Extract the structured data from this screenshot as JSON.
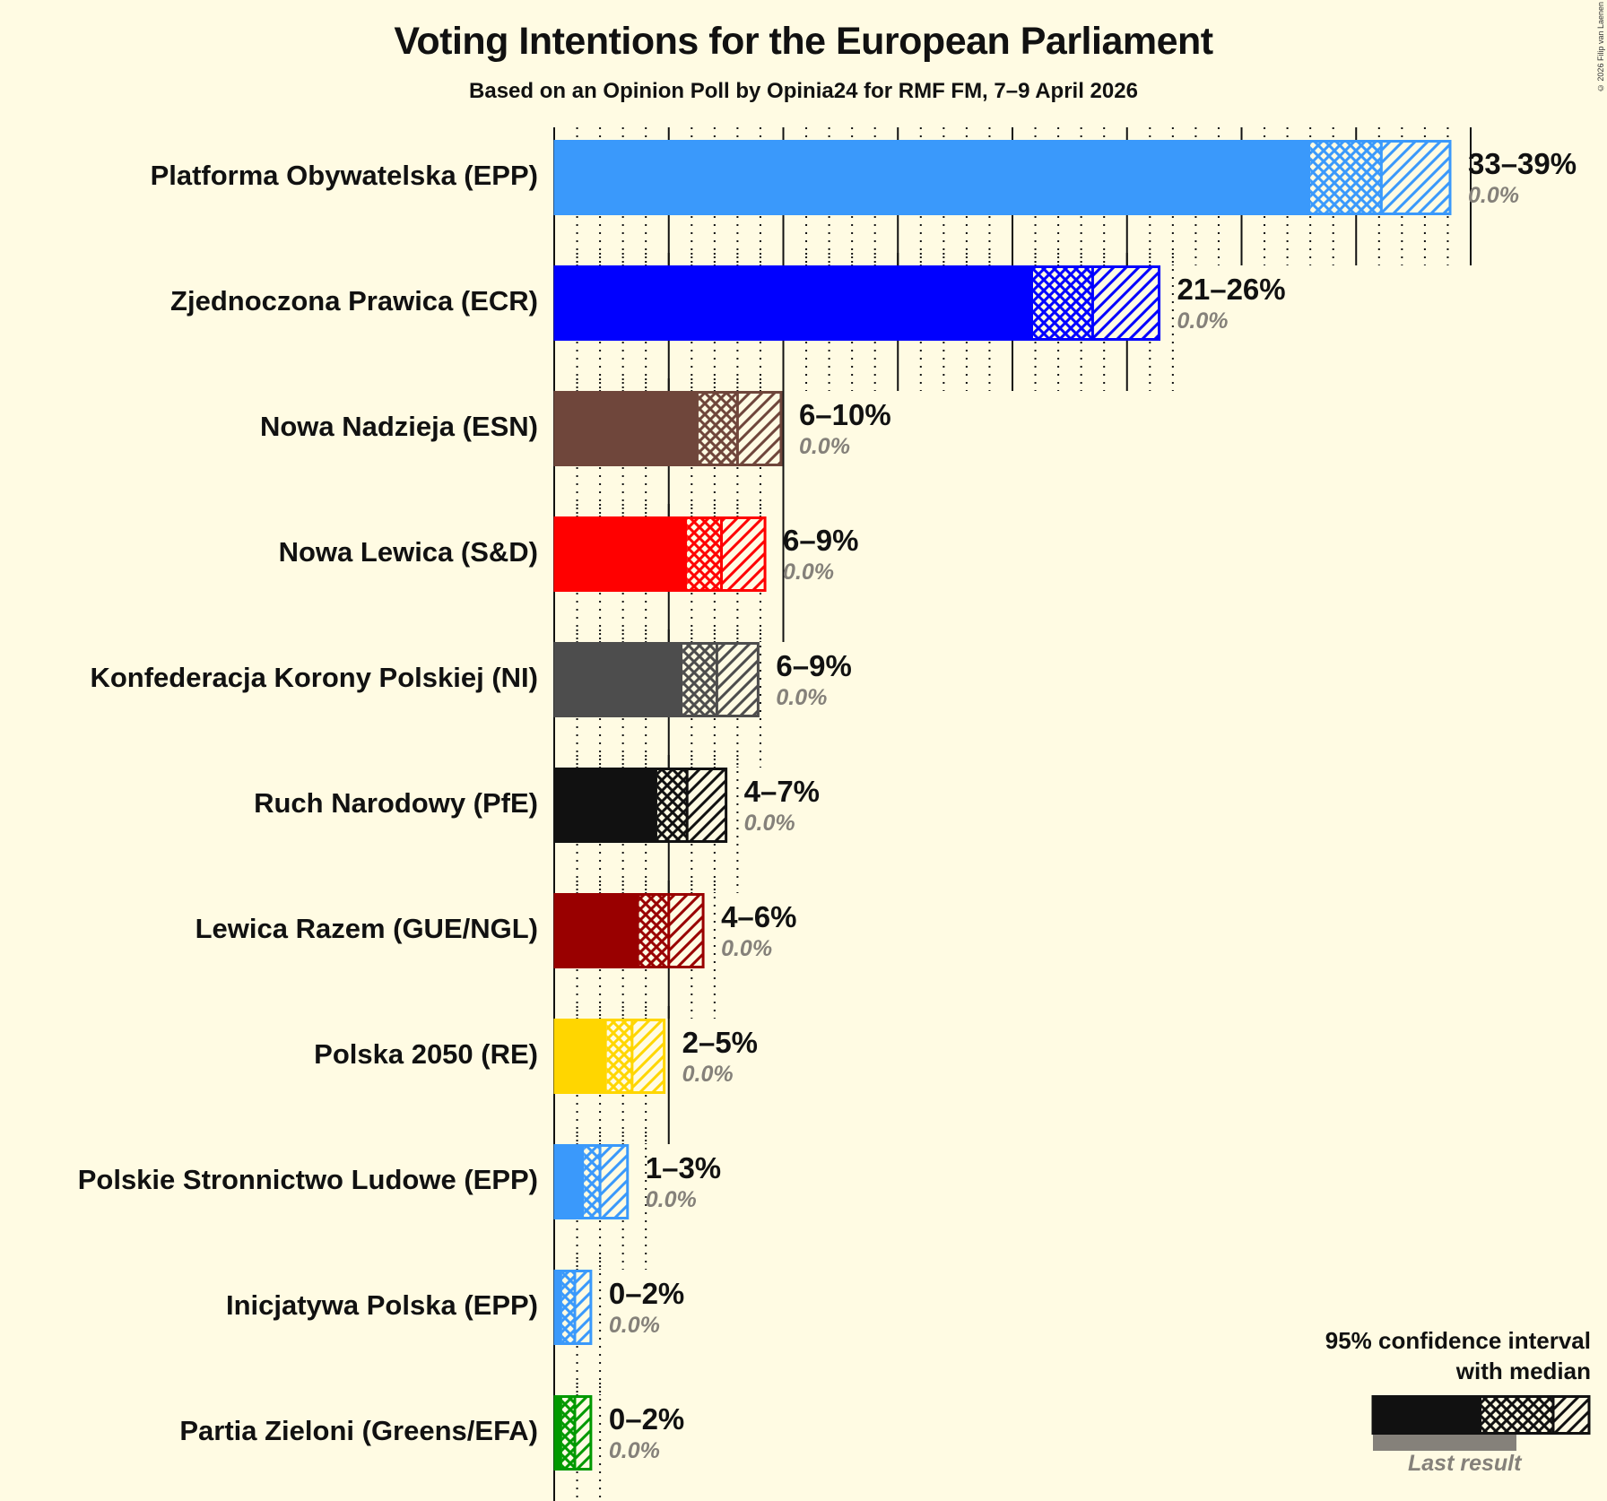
{
  "header": {
    "title": "Voting Intentions for the European Parliament",
    "subtitle": "Based on an Opinion Poll by Opinia24 for RMF FM, 7–9 April 2026",
    "copyright": "© 2026 Filip van Laenen"
  },
  "legend": {
    "line1": "95% confidence interval",
    "line2": "with median",
    "last_result": "Last result"
  },
  "chart_data": {
    "type": "bar",
    "orientation": "horizontal",
    "title": "Voting Intentions for the European Parliament",
    "subtitle": "Based on an Opinion Poll by Opinia24 for RMF FM, 7–9 April 2026",
    "xlabel": "",
    "ylabel": "",
    "xlim": [
      0,
      40
    ],
    "grid": {
      "major_every": 5,
      "minor_every": 1
    },
    "categories": [
      "Platforma Obywatelska (EPP)",
      "Zjednoczona Prawica (ECR)",
      "Nowa Nadzieja (ESN)",
      "Nowa Lewica (S&D)",
      "Konfederacja Korony Polskiej (NI)",
      "Ruch Narodowy (PfE)",
      "Lewica Razem (GUE/NGL)",
      "Polska 2050 (RE)",
      "Polskie Stronnictwo Ludowe (EPP)",
      "Inicjatywa Polska (EPP)",
      "Partia Zieloni (Greens/EFA)"
    ],
    "series": [
      {
        "name": "CI low (95%)",
        "values": [
          33.0,
          20.9,
          6.3,
          5.8,
          5.6,
          4.5,
          3.7,
          2.3,
          1.3,
          0.35,
          0.35
        ]
      },
      {
        "name": "Median",
        "values": [
          36.1,
          23.5,
          8.0,
          7.3,
          7.1,
          5.8,
          5.0,
          3.4,
          2.0,
          0.9,
          0.9
        ]
      },
      {
        "name": "CI high (95%)",
        "values": [
          39.1,
          26.4,
          9.9,
          9.2,
          8.9,
          7.5,
          6.5,
          4.8,
          3.2,
          1.6,
          1.6
        ]
      },
      {
        "name": "Last result",
        "values": [
          0.0,
          0.0,
          0.0,
          0.0,
          0.0,
          0.0,
          0.0,
          0.0,
          0.0,
          0.0,
          0.0
        ]
      }
    ],
    "range_labels": [
      "33–39%",
      "21–26%",
      "6–10%",
      "6–9%",
      "6–9%",
      "4–7%",
      "4–6%",
      "2–5%",
      "1–3%",
      "0–2%",
      "0–2%"
    ],
    "last_result_labels": [
      "0.0%",
      "0.0%",
      "0.0%",
      "0.0%",
      "0.0%",
      "0.0%",
      "0.0%",
      "0.0%",
      "0.0%",
      "0.0%",
      "0.0%"
    ],
    "colors": [
      "#3a99fb",
      "#0000ff",
      "#6f463b",
      "#ff0000",
      "#4d4d4d",
      "#111111",
      "#990000",
      "#ffd600",
      "#3a99fb",
      "#3a99fb",
      "#009900"
    ],
    "legend": {
      "position": "bottom-right",
      "entries": [
        "95% confidence interval with median",
        "Last result"
      ]
    }
  },
  "parties": [
    {
      "name": "Platforma Obywatelska (EPP)",
      "range": "33–39%",
      "last": "0.0%",
      "color": "#3a99fb"
    },
    {
      "name": "Zjednoczona Prawica (ECR)",
      "range": "21–26%",
      "last": "0.0%",
      "color": "#0000ff"
    },
    {
      "name": "Nowa Nadzieja (ESN)",
      "range": "6–10%",
      "last": "0.0%",
      "color": "#6f463b"
    },
    {
      "name": "Nowa Lewica (S&D)",
      "range": "6–9%",
      "last": "0.0%",
      "color": "#ff0000"
    },
    {
      "name": "Konfederacja Korony Polskiej (NI)",
      "range": "6–9%",
      "last": "0.0%",
      "color": "#4d4d4d"
    },
    {
      "name": "Ruch Narodowy (PfE)",
      "range": "4–7%",
      "last": "0.0%",
      "color": "#111111"
    },
    {
      "name": "Lewica Razem (GUE/NGL)",
      "range": "4–6%",
      "last": "0.0%",
      "color": "#990000"
    },
    {
      "name": "Polska 2050 (RE)",
      "range": "2–5%",
      "last": "0.0%",
      "color": "#ffd600"
    },
    {
      "name": "Polskie Stronnictwo Ludowe (EPP)",
      "range": "1–3%",
      "last": "0.0%",
      "color": "#3a99fb"
    },
    {
      "name": "Inicjatywa Polska (EPP)",
      "range": "0–2%",
      "last": "0.0%",
      "color": "#3a99fb"
    },
    {
      "name": "Partia Zieloni (Greens/EFA)",
      "range": "0–2%",
      "last": "0.0%",
      "color": "#009900"
    }
  ]
}
